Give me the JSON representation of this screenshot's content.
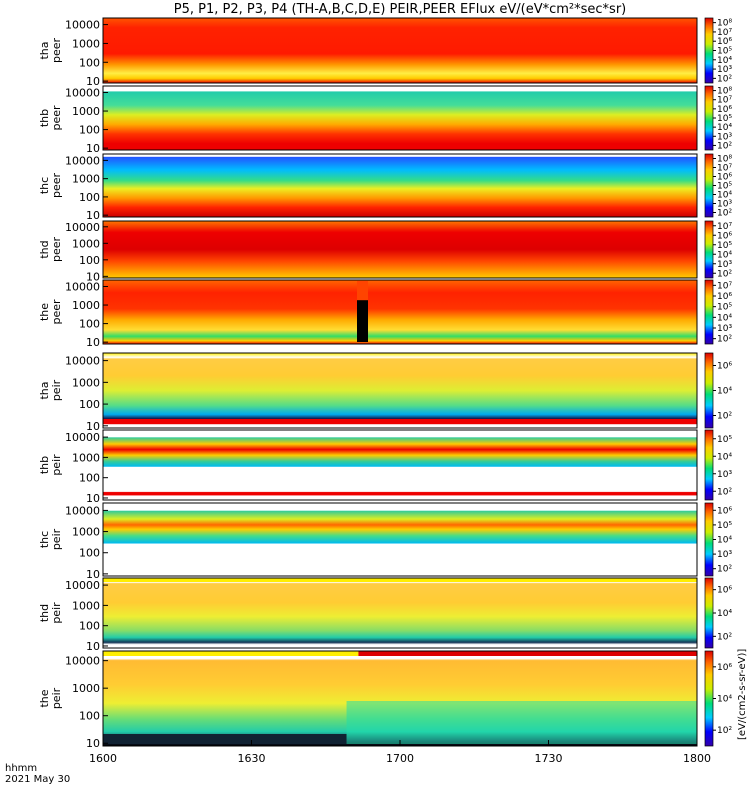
{
  "chart_data": {
    "type": "heatmap",
    "title": "P5, P1, P2, P3, P4 (TH-A,B,C,D,E) PEIR,PEER EFlux eV/(eV*cm²*sec*sr)",
    "x_ticks": [
      "1600",
      "1630",
      "1700",
      "1730",
      "1800"
    ],
    "x_label_top": "hhmm",
    "x_label_bottom": "2021 May 30",
    "y_ticks": [
      "10",
      "100",
      "1000",
      "10000"
    ],
    "y_scale": "log",
    "colorbar_label": "[eV/(cm2-s-sr-eV)]",
    "panels": [
      {
        "probe": "tha",
        "species": "peer",
        "colorbar_ticks": [
          "10²",
          "10³",
          "10⁴",
          "10⁵",
          "10⁶",
          "10⁷",
          "10⁸"
        ]
      },
      {
        "probe": "thb",
        "species": "peer",
        "colorbar_ticks": [
          "10²",
          "10³",
          "10⁴",
          "10⁵",
          "10⁶",
          "10⁷",
          "10⁸"
        ]
      },
      {
        "probe": "thc",
        "species": "peer",
        "colorbar_ticks": [
          "10²",
          "10³",
          "10⁴",
          "10⁵",
          "10⁶",
          "10⁷",
          "10⁸"
        ]
      },
      {
        "probe": "thd",
        "species": "peer",
        "colorbar_ticks": [
          "10²",
          "10³",
          "10⁴",
          "10⁵",
          "10⁶",
          "10⁷"
        ]
      },
      {
        "probe": "the",
        "species": "peer",
        "colorbar_ticks": [
          "10²",
          "10³",
          "10⁴",
          "10⁵",
          "10⁶",
          "10⁷"
        ]
      },
      {
        "probe": "tha",
        "species": "peir",
        "colorbar_ticks": [
          "10²",
          "10⁴",
          "10⁶"
        ]
      },
      {
        "probe": "thb",
        "species": "peir",
        "colorbar_ticks": [
          "10²",
          "10³",
          "10⁴",
          "10⁵"
        ]
      },
      {
        "probe": "thc",
        "species": "peir",
        "colorbar_ticks": [
          "10²",
          "10³",
          "10⁴",
          "10⁵",
          "10⁶"
        ]
      },
      {
        "probe": "thd",
        "species": "peir",
        "colorbar_ticks": [
          "10²",
          "10⁴",
          "10⁶"
        ]
      },
      {
        "probe": "the",
        "species": "peir",
        "colorbar_ticks": [
          "10²",
          "10⁴",
          "10⁶"
        ]
      }
    ]
  }
}
